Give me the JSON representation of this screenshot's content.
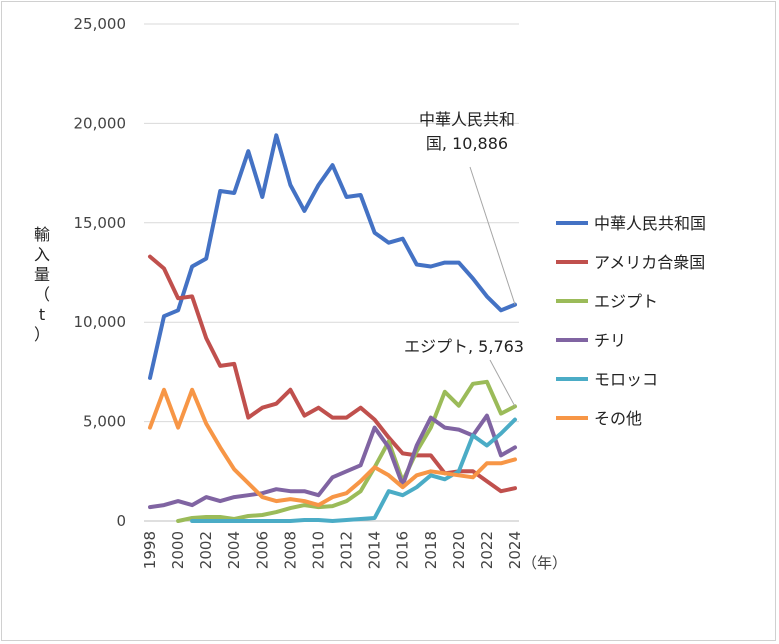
{
  "chart_data": {
    "type": "line",
    "ylabel": "輸入量（t）",
    "xunit": "（年）",
    "ylim": [
      0,
      25000
    ],
    "yticks": [
      "0",
      "5,000",
      "10,000",
      "15,000",
      "20,000",
      "25,000"
    ],
    "ytick_values": [
      0,
      5000,
      10000,
      15000,
      20000,
      25000
    ],
    "xlim": [
      1998,
      2024
    ],
    "xticks": [
      "1998",
      "2000",
      "2002",
      "2004",
      "2006",
      "2008",
      "2010",
      "2012",
      "2014",
      "2016",
      "2018",
      "2020",
      "2022",
      "2024"
    ],
    "grid": "horizontal",
    "legend_position": "right",
    "x": [
      1998,
      1999,
      2000,
      2001,
      2002,
      2003,
      2004,
      2005,
      2006,
      2007,
      2008,
      2009,
      2010,
      2011,
      2012,
      2013,
      2014,
      2015,
      2016,
      2017,
      2018,
      2019,
      2020,
      2021,
      2022,
      2023,
      2024
    ],
    "series": [
      {
        "name": "中華人民共和国",
        "color": "#4472C4",
        "values": [
          7200,
          10300,
          10600,
          12800,
          13200,
          16600,
          16500,
          18600,
          16300,
          19400,
          16900,
          15600,
          16900,
          17900,
          16300,
          16400,
          14500,
          14000,
          14200,
          12900,
          12800,
          13000,
          13000,
          12200,
          11300,
          10600,
          10886
        ]
      },
      {
        "name": "アメリカ合衆国",
        "color": "#C0504D",
        "values": [
          13300,
          12700,
          11200,
          11300,
          9200,
          7800,
          7900,
          5200,
          5700,
          5900,
          6600,
          5300,
          5700,
          5200,
          5200,
          5700,
          5100,
          4200,
          3400,
          3300,
          3300,
          2400,
          2500,
          2500,
          2000,
          1500,
          1650
        ]
      },
      {
        "name": "エジプト",
        "color": "#9BBB59",
        "values": [
          null,
          null,
          0,
          150,
          200,
          200,
          100,
          250,
          300,
          450,
          650,
          800,
          700,
          750,
          1000,
          1500,
          2700,
          4000,
          2000,
          3500,
          4700,
          6500,
          5800,
          6900,
          7000,
          5400,
          5763
        ]
      },
      {
        "name": "チリ",
        "color": "#8064A2",
        "values": [
          700,
          800,
          1000,
          800,
          1200,
          1000,
          1200,
          1300,
          1400,
          1600,
          1500,
          1500,
          1300,
          2200,
          2500,
          2800,
          4700,
          3700,
          1800,
          3800,
          5200,
          4700,
          4600,
          4300,
          5300,
          3300,
          3700
        ]
      },
      {
        "name": "モロッコ",
        "color": "#4BACC6",
        "values": [
          null,
          null,
          null,
          0,
          0,
          0,
          0,
          0,
          0,
          0,
          0,
          50,
          50,
          0,
          50,
          100,
          150,
          1500,
          1300,
          1700,
          2300,
          2100,
          2500,
          4300,
          3800,
          4400,
          5100
        ]
      },
      {
        "name": "その他",
        "color": "#F79646",
        "values": [
          4700,
          6600,
          4700,
          6600,
          4900,
          3700,
          2600,
          1900,
          1200,
          1000,
          1100,
          1000,
          800,
          1200,
          1400,
          2000,
          2700,
          2300,
          1700,
          2300,
          2500,
          2400,
          2300,
          2200,
          2900,
          2900,
          3100
        ]
      }
    ],
    "annotations": [
      {
        "lines": [
          "中華人民共和",
          "国, 10,886"
        ],
        "series": "中華人民共和国",
        "x": 2024,
        "y": 10886
      },
      {
        "lines": [
          "エジプト, 5,763"
        ],
        "series": "エジプト",
        "x": 2024,
        "y": 5763
      }
    ]
  }
}
